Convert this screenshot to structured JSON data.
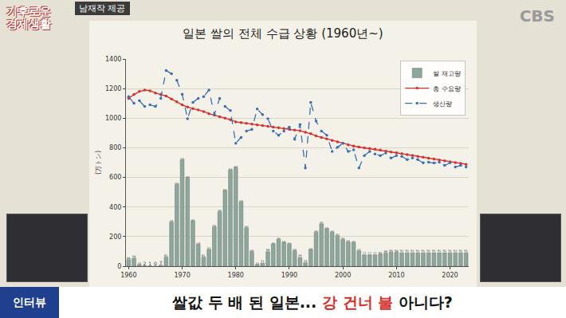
{
  "chart_data": {
    "type": "bar",
    "title": "일본 쌀의 전체 수급 상황 (1960년~)",
    "y_label": "(万トン)",
    "x": [
      1960,
      1961,
      1962,
      1963,
      1964,
      1965,
      1966,
      1967,
      1968,
      1969,
      1970,
      1971,
      1972,
      1973,
      1974,
      1975,
      1976,
      1977,
      1978,
      1979,
      1980,
      1981,
      1982,
      1983,
      1984,
      1985,
      1986,
      1987,
      1988,
      1989,
      1990,
      1991,
      1992,
      1993,
      1994,
      1995,
      1996,
      1997,
      1998,
      1999,
      2000,
      2001,
      2002,
      2003,
      2004,
      2005,
      2006,
      2007,
      2008,
      2009,
      2010,
      2011,
      2012,
      2013,
      2014,
      2015,
      2016,
      2017,
      2018,
      2019,
      2020,
      2021,
      2022,
      2023
    ],
    "xlim": [
      1959.5,
      2023.5
    ],
    "xticks": [
      1960,
      1970,
      1980,
      1990,
      2000,
      2010,
      2020
    ],
    "ylim": [
      0,
      1400
    ],
    "yticks": [
      0,
      200,
      400,
      600,
      800,
      1000,
      1200,
      1400
    ],
    "grid": true,
    "legend": "top right",
    "series": [
      {
        "name": "쌀 재고량",
        "type": "bar",
        "color": "#8ea69c",
        "data_labels": true,
        "values": [
          44,
          54,
          10,
          2,
          1,
          0,
          7,
          61,
          298,
          553,
          720,
          596,
          307,
          148,
          61,
          114,
          266,
          368,
          512,
          649,
          666,
          435,
          260,
          100,
          10,
          21,
          98,
          150,
          181,
          161,
          150,
          105,
          59,
          23,
          113,
          230,
          287,
          253,
          230,
          207,
          180,
          164,
          160,
          104,
          77,
          77,
          77,
          80,
          88,
          95,
          94,
          91,
          91,
          91,
          91,
          91,
          91,
          91,
          91,
          91,
          91,
          91,
          91,
          91
        ]
      },
      {
        "name": "총 수요량",
        "type": "line",
        "color": "#d8302a",
        "marker": "circle",
        "line_style": "solid",
        "values": [
          1134,
          1160,
          1180,
          1190,
          1185,
          1170,
          1160,
          1150,
          1130,
          1110,
          1090,
          1075,
          1065,
          1055,
          1045,
          1030,
          1020,
          1010,
          1000,
          990,
          975,
          970,
          965,
          960,
          955,
          950,
          945,
          940,
          935,
          930,
          925,
          920,
          915,
          905,
          895,
          880,
          870,
          860,
          850,
          840,
          830,
          820,
          812,
          805,
          800,
          795,
          790,
          785,
          778,
          772,
          766,
          760,
          754,
          748,
          742,
          736,
          730,
          724,
          718,
          712,
          706,
          700,
          694,
          688
        ]
      },
      {
        "name": "생산량",
        "type": "line",
        "color": "#3c6fb4",
        "marker": "circle",
        "line_style": "dash",
        "values": [
          1145,
          1101,
          1118,
          1079,
          1090,
          1079,
          1134,
          1322,
          1300,
          1256,
          1162,
          996,
          1107,
          1134,
          1145,
          1190,
          1024,
          1134,
          1079,
          1051,
          830,
          869,
          913,
          924,
          1062,
          1024,
          996,
          913,
          885,
          913,
          940,
          858,
          957,
          664,
          1107,
          980,
          913,
          885,
          775,
          803,
          830,
          775,
          786,
          664,
          747,
          775,
          758,
          747,
          764,
          731,
          747,
          742,
          720,
          731,
          720,
          698,
          703,
          697,
          703,
          681,
          698,
          670,
          681,
          670
        ]
      }
    ]
  },
  "overlay": {
    "logo": "기후로운\n경제생활",
    "credit": "남재작 제공",
    "channel": "CBS",
    "tag": "인터뷰",
    "headline": [
      {
        "text": "쌀값 두 배 된 일본... ",
        "color": "#111111"
      },
      {
        "text": "강 건너 불",
        "color": "#d8302a"
      },
      {
        "text": " 아니다?",
        "color": "#111111"
      }
    ]
  }
}
